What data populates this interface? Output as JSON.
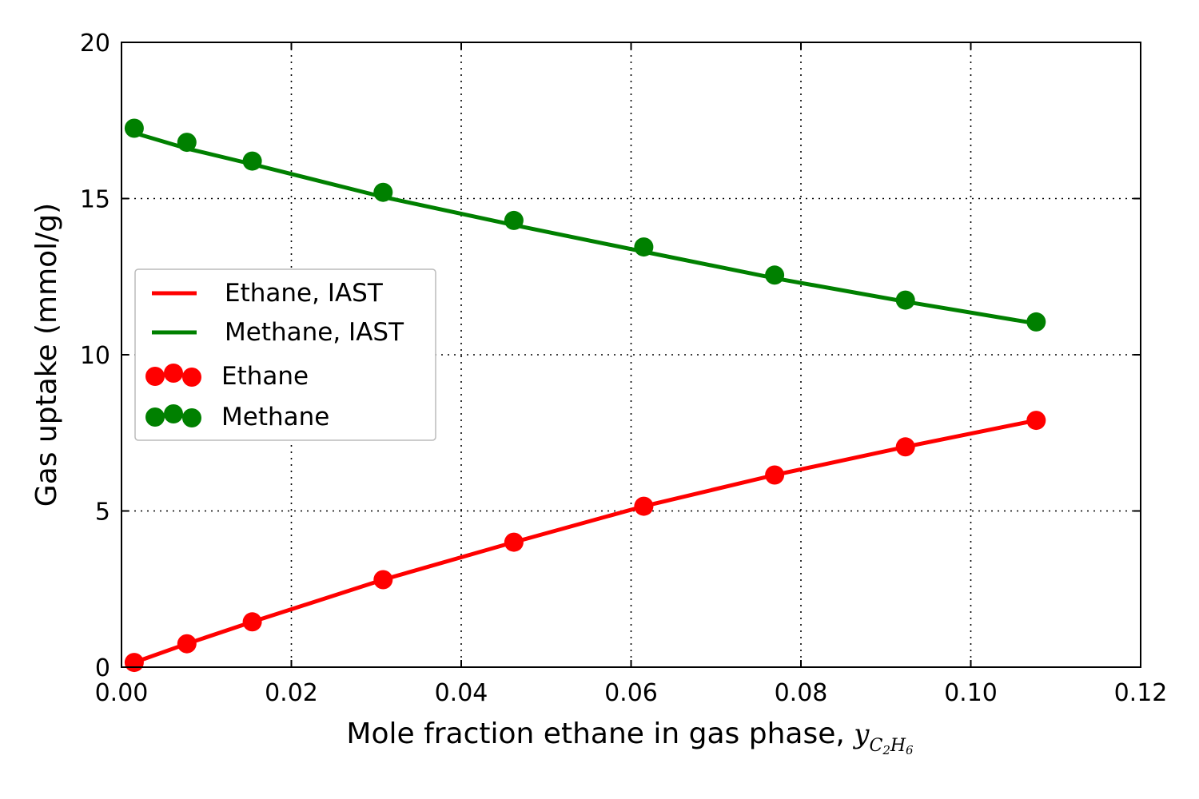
{
  "chart_data": {
    "type": "line",
    "title": "",
    "xlabel": "Mole fraction ethane in gas phase, ",
    "xlabel_math": {
      "base": "y",
      "subscript_parts": [
        {
          "text": "C",
          "sub": "2"
        },
        {
          "text": "H",
          "sub": "6"
        }
      ]
    },
    "ylabel": "Gas uptake (mmol/g)",
    "xlim": [
      0.0,
      0.12
    ],
    "ylim": [
      0,
      20
    ],
    "x_ticks": [
      0.0,
      0.02,
      0.04,
      0.06,
      0.08,
      0.1,
      0.12
    ],
    "x_tick_labels": [
      "0.00",
      "0.02",
      "0.04",
      "0.06",
      "0.08",
      "0.10",
      "0.12"
    ],
    "y_ticks": [
      0,
      5,
      10,
      15,
      20
    ],
    "y_tick_labels": [
      "0",
      "5",
      "10",
      "15",
      "20"
    ],
    "grid": true,
    "legend_position": "center-left",
    "x": [
      0.0015,
      0.0077,
      0.0154,
      0.0308,
      0.0462,
      0.0615,
      0.0769,
      0.0923,
      0.1077
    ],
    "series": [
      {
        "name": "Ethane, IAST",
        "style": "line",
        "color": "#ff0000",
        "x": [
          0.0015,
          0.0077,
          0.0154,
          0.0308,
          0.0462,
          0.0615,
          0.0769,
          0.0923,
          0.1077
        ],
        "values": [
          0.15,
          0.75,
          1.45,
          2.8,
          4.0,
          5.15,
          6.15,
          7.05,
          7.9
        ]
      },
      {
        "name": "Methane, IAST",
        "style": "line",
        "color": "#008000",
        "x": [
          0.0015,
          0.0077,
          0.0154,
          0.0308,
          0.0462,
          0.0615,
          0.0769,
          0.0923,
          0.1077
        ],
        "values": [
          17.1,
          16.6,
          16.1,
          15.05,
          14.15,
          13.3,
          12.45,
          11.7,
          11.0
        ]
      },
      {
        "name": "Ethane",
        "style": "markers",
        "color": "#ff0000",
        "x": [
          0.0015,
          0.0077,
          0.0154,
          0.0308,
          0.0462,
          0.0615,
          0.0769,
          0.0923,
          0.1077
        ],
        "values": [
          0.15,
          0.75,
          1.45,
          2.8,
          4.0,
          5.15,
          6.15,
          7.05,
          7.9
        ]
      },
      {
        "name": "Methane",
        "style": "markers",
        "color": "#008000",
        "x": [
          0.0015,
          0.0077,
          0.0154,
          0.0308,
          0.0462,
          0.0615,
          0.0769,
          0.0923,
          0.1077
        ],
        "values": [
          17.25,
          16.8,
          16.2,
          15.2,
          14.3,
          13.45,
          12.55,
          11.75,
          11.05
        ]
      }
    ]
  }
}
